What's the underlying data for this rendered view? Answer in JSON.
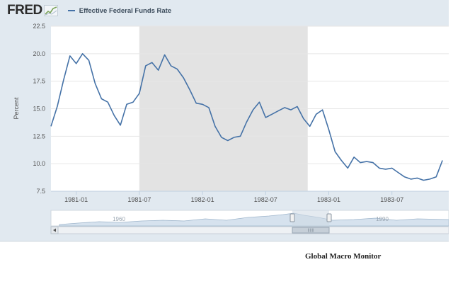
{
  "header": {
    "logo_text": "FRED",
    "logo_icon": "chart-line-icon",
    "legend_label": "Effective Federal Funds Rate"
  },
  "footer": {
    "credit": "Global Macro Monitor"
  },
  "colors": {
    "series": "#4572a7",
    "recession": "#e3e3e3",
    "background": "#e1e9f0",
    "grid": "#e6e6e6"
  },
  "navigator": {
    "left_label": "1960",
    "right_label": "1990",
    "scroll_icon": "grip-icon"
  },
  "chart_data": {
    "type": "line",
    "title": "",
    "xlabel": "",
    "ylabel": "Percent",
    "ylim": [
      7.5,
      22.5
    ],
    "y_ticks": [
      "7.5",
      "10.0",
      "12.5",
      "15.0",
      "17.5",
      "20.0",
      "22.5"
    ],
    "x_ticks": [
      "1981-01",
      "1981-07",
      "1982-01",
      "1982-07",
      "1983-01",
      "1983-07"
    ],
    "recession_shading": {
      "start": "1981-07",
      "end": "1982-11"
    },
    "series": [
      {
        "name": "Effective Federal Funds Rate",
        "x": [
          1980.8,
          1980.85,
          1980.9,
          1980.95,
          1981.0,
          1981.05,
          1981.1,
          1981.15,
          1981.2,
          1981.25,
          1981.3,
          1981.35,
          1981.4,
          1981.45,
          1981.5,
          1981.55,
          1981.6,
          1981.65,
          1981.7,
          1981.75,
          1981.8,
          1981.85,
          1981.9,
          1981.95,
          1982.0,
          1982.05,
          1982.1,
          1982.15,
          1982.2,
          1982.25,
          1982.3,
          1982.35,
          1982.4,
          1982.45,
          1982.5,
          1982.55,
          1982.6,
          1982.65,
          1982.7,
          1982.75,
          1982.8,
          1982.85,
          1982.9,
          1982.95,
          1983.0,
          1983.05,
          1983.1,
          1983.15,
          1983.2,
          1983.25,
          1983.3,
          1983.35,
          1983.4,
          1983.45,
          1983.5,
          1983.55,
          1983.6,
          1983.65,
          1983.7,
          1983.75,
          1983.8,
          1983.85,
          1983.9
        ],
        "values": [
          13.4,
          15.2,
          17.6,
          19.8,
          19.1,
          20.0,
          19.4,
          17.3,
          15.9,
          15.6,
          14.4,
          13.5,
          15.4,
          15.6,
          16.4,
          18.9,
          19.2,
          18.5,
          19.9,
          18.9,
          18.6,
          17.8,
          16.7,
          15.5,
          15.4,
          15.1,
          13.4,
          12.4,
          12.1,
          12.4,
          12.5,
          13.8,
          14.9,
          15.6,
          14.2,
          14.5,
          14.8,
          15.1,
          14.9,
          15.2,
          14.1,
          13.4,
          14.5,
          14.9,
          13.1,
          11.1,
          10.3,
          9.6,
          10.6,
          10.1,
          10.2,
          10.1,
          9.6,
          9.5,
          9.6,
          9.2,
          8.8,
          8.6,
          8.7,
          8.5,
          8.6,
          8.8,
          10.3
        ]
      }
    ]
  }
}
